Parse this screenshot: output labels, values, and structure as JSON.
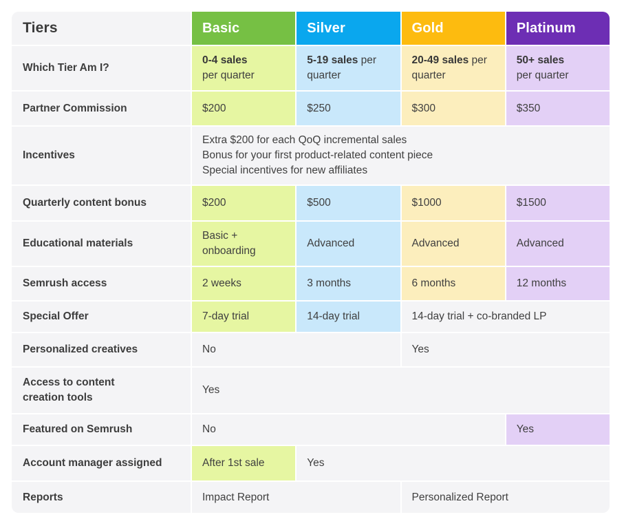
{
  "table": {
    "corner_label": "Tiers",
    "colors": {
      "row_bg": "#f4f4f6",
      "text": "#3f3f3f"
    },
    "tiers": [
      {
        "name": "Basic",
        "header_color": "#76c044"
      },
      {
        "name": "Silver",
        "header_color": "#0aa7ee"
      },
      {
        "name": "Gold",
        "header_color": "#fdbb0f"
      },
      {
        "name": "Platinum",
        "header_color": "#6d2eb4"
      }
    ],
    "tints": {
      "basic": "#e6f6a2",
      "silver": "#c9e8fb",
      "gold": "#fceebd",
      "platinum": "#e3d0f6"
    },
    "rows": [
      {
        "label": "Which Tier Am I?",
        "cells": [
          {
            "bold": "0-4 sales",
            "text": "\nper quarter",
            "tint": "basic"
          },
          {
            "bold": "5-19 sales",
            "text": " per\nquarter",
            "tint": "silver"
          },
          {
            "bold": "20-49 sales",
            "text": " per\nquarter",
            "tint": "gold"
          },
          {
            "bold": "50+ sales",
            "text": "\nper quarter",
            "tint": "platinum"
          }
        ]
      },
      {
        "label": "Partner Commission",
        "cells": [
          {
            "text": "$200",
            "tint": "basic"
          },
          {
            "text": "$250",
            "tint": "silver"
          },
          {
            "text": "$300",
            "tint": "gold"
          },
          {
            "text": "$350",
            "tint": "platinum"
          }
        ]
      },
      {
        "label": "Incentives",
        "cells": [
          {
            "text": "Extra $200 for each QoQ incremental sales\nBonus for your first product-related content piece\nSpecial incentives for new affiliates",
            "span": 4
          }
        ]
      },
      {
        "label": "Quarterly content bonus",
        "cells": [
          {
            "text": "$200",
            "tint": "basic"
          },
          {
            "text": "$500",
            "tint": "silver"
          },
          {
            "text": "$1000",
            "tint": "gold"
          },
          {
            "text": "$1500",
            "tint": "platinum"
          }
        ]
      },
      {
        "label": "Educational materials",
        "cells": [
          {
            "text": "Basic +\nonboarding",
            "tint": "basic"
          },
          {
            "text": "Advanced",
            "tint": "silver"
          },
          {
            "text": "Advanced",
            "tint": "gold"
          },
          {
            "text": "Advanced",
            "tint": "platinum"
          }
        ]
      },
      {
        "label": "Semrush access",
        "cells": [
          {
            "text": "2 weeks",
            "tint": "basic"
          },
          {
            "text": "3 months",
            "tint": "silver"
          },
          {
            "text": "6 months",
            "tint": "gold"
          },
          {
            "text": "12 months",
            "tint": "platinum"
          }
        ]
      },
      {
        "label": "Special Offer",
        "cells": [
          {
            "text": "7-day trial",
            "tint": "basic"
          },
          {
            "text": "14-day trial",
            "tint": "silver"
          },
          {
            "text": "14-day trial + co-branded LP",
            "span": 2
          }
        ]
      },
      {
        "label": "Personalized creatives",
        "cells": [
          {
            "text": "No",
            "span": 2
          },
          {
            "text": "Yes",
            "span": 2
          }
        ]
      },
      {
        "label": "Access to content\ncreation tools",
        "cells": [
          {
            "text": "Yes",
            "span": 4
          }
        ]
      },
      {
        "label": "Featured on Semrush",
        "cells": [
          {
            "text": "No",
            "span": 3
          },
          {
            "text": "Yes",
            "tint": "platinum"
          }
        ]
      },
      {
        "label": "Account manager assigned",
        "cells": [
          {
            "text": "After 1st sale",
            "tint": "basic"
          },
          {
            "text": "Yes",
            "span": 3
          }
        ]
      },
      {
        "label": "Reports",
        "cells": [
          {
            "text": "Impact Report",
            "span": 2
          },
          {
            "text": "Personalized Report",
            "span": 2
          }
        ]
      }
    ]
  },
  "chart_data": {
    "type": "table",
    "title": "Tiers",
    "columns": [
      "Tiers",
      "Basic",
      "Silver",
      "Gold",
      "Platinum"
    ],
    "rows": [
      [
        "Which Tier Am I?",
        "0-4 sales per quarter",
        "5-19 sales per quarter",
        "20-49 sales per quarter",
        "50+ sales per quarter"
      ],
      [
        "Partner Commission",
        "$200",
        "$250",
        "$300",
        "$350"
      ],
      [
        "Incentives",
        "Extra $200 for each QoQ incremental sales; Bonus for your first product-related content piece; Special incentives for new affiliates",
        "Extra $200 for each QoQ incremental sales; Bonus for your first product-related content piece; Special incentives for new affiliates",
        "Extra $200 for each QoQ incremental sales; Bonus for your first product-related content piece; Special incentives for new affiliates",
        "Extra $200 for each QoQ incremental sales; Bonus for your first product-related content piece; Special incentives for new affiliates"
      ],
      [
        "Quarterly content bonus",
        "$200",
        "$500",
        "$1000",
        "$1500"
      ],
      [
        "Educational materials",
        "Basic + onboarding",
        "Advanced",
        "Advanced",
        "Advanced"
      ],
      [
        "Semrush access",
        "2 weeks",
        "3 months",
        "6 months",
        "12 months"
      ],
      [
        "Special Offer",
        "7-day trial",
        "14-day trial",
        "14-day trial + co-branded LP",
        "14-day trial + co-branded LP"
      ],
      [
        "Personalized creatives",
        "No",
        "No",
        "Yes",
        "Yes"
      ],
      [
        "Access to content creation tools",
        "Yes",
        "Yes",
        "Yes",
        "Yes"
      ],
      [
        "Featured on Semrush",
        "No",
        "No",
        "No",
        "Yes"
      ],
      [
        "Account manager assigned",
        "After 1st sale",
        "Yes",
        "Yes",
        "Yes"
      ],
      [
        "Reports",
        "Impact Report",
        "Impact Report",
        "Personalized Report",
        "Personalized Report"
      ]
    ]
  }
}
